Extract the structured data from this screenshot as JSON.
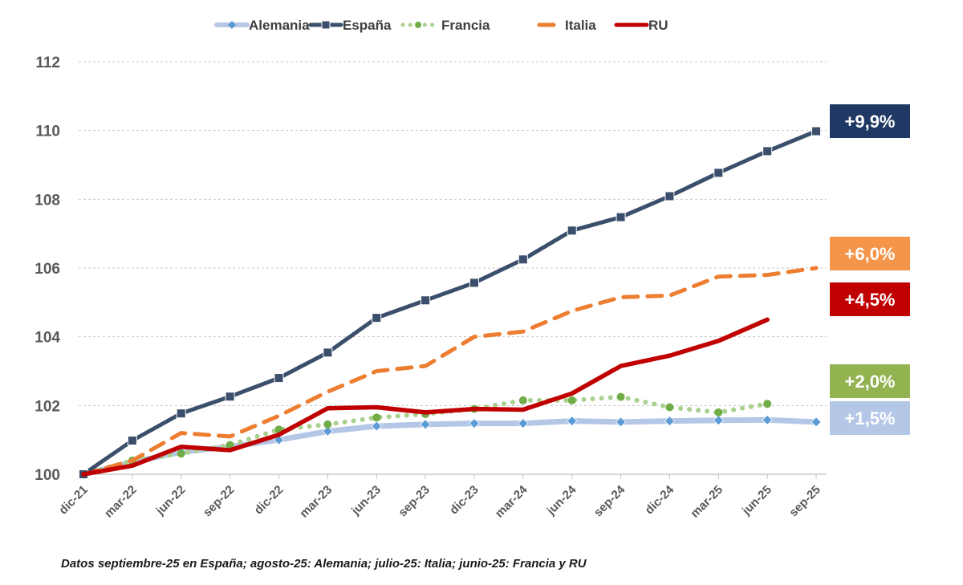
{
  "chart_data": {
    "type": "line",
    "title": "",
    "xlabel": "",
    "ylabel": "",
    "ylim": [
      100,
      112
    ],
    "yticks": [
      "100",
      "102",
      "104",
      "106",
      "108",
      "110",
      "112"
    ],
    "grid": true,
    "legend_position": "top-center",
    "categories": [
      "dic-21",
      "mar-22",
      "jun-22",
      "sep-22",
      "dic-22",
      "mar-23",
      "jun-23",
      "sep-23",
      "dic-23",
      "mar-24",
      "jun-24",
      "sep-24",
      "dic-24",
      "mar-25",
      "jun-25",
      "sep-25"
    ],
    "series": [
      {
        "name": "Alemania",
        "color": "#b4c7e7",
        "marker_color": "#5b9bd5",
        "style": "solid-light",
        "marker": "diamond",
        "values": [
          100,
          100.35,
          100.65,
          100.8,
          101.0,
          101.25,
          101.4,
          101.45,
          101.48,
          101.48,
          101.55,
          101.52,
          101.55,
          101.57,
          101.58,
          101.52
        ],
        "badge": "+1,5%",
        "badge_color": "#b4c7e7"
      },
      {
        "name": "España",
        "color": "#3b4e6b",
        "marker_color": "#3b4e6b",
        "style": "solid",
        "marker": "square",
        "values": [
          100,
          100.98,
          101.77,
          102.26,
          102.8,
          103.54,
          104.55,
          105.06,
          105.57,
          106.25,
          107.09,
          107.48,
          108.09,
          108.77,
          109.4,
          109.98
        ],
        "badge": "+9,9%",
        "badge_color": "#203864"
      },
      {
        "name": "Francia",
        "color": "#a9d18e",
        "marker_color": "#70ad47",
        "style": "dotted",
        "marker": "circle",
        "values": [
          100,
          100.4,
          100.6,
          100.85,
          101.3,
          101.45,
          101.65,
          101.75,
          101.9,
          102.15,
          102.15,
          102.25,
          101.95,
          101.8,
          102.05,
          null
        ],
        "badge": "+2,0%",
        "badge_color": "#92b350"
      },
      {
        "name": "Italia",
        "color": "#ed7d31",
        "marker_color": "#ed7d31",
        "style": "dashed",
        "marker": "none",
        "values": [
          100,
          100.4,
          101.2,
          101.1,
          101.7,
          102.4,
          103.0,
          103.15,
          104.0,
          104.15,
          104.75,
          105.15,
          105.2,
          105.75,
          105.8,
          106.0
        ],
        "badge": "+6,0%",
        "badge_color": "#f4954a"
      },
      {
        "name": "RU",
        "color": "#c00000",
        "marker_color": "#c00000",
        "style": "thick",
        "marker": "none",
        "values": [
          100,
          100.25,
          100.8,
          100.7,
          101.15,
          101.92,
          101.95,
          101.8,
          101.9,
          101.88,
          102.35,
          103.15,
          103.45,
          103.88,
          104.5,
          null
        ],
        "badge": "+4,5%",
        "badge_color": "#c00000"
      }
    ],
    "footnote": "Datos septiembre-25 en España; agosto-25: Alemania; julio-25: Italia; junio-25: Francia y RU"
  }
}
